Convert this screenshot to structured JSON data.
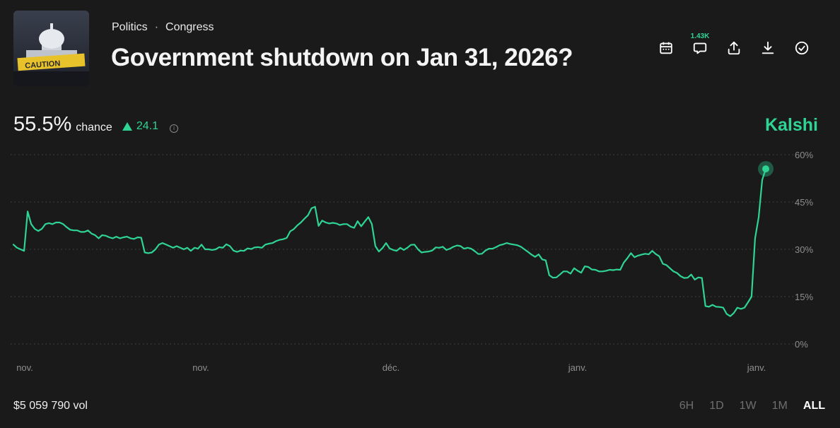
{
  "market": {
    "breadcrumb": [
      "Politics",
      "Congress"
    ],
    "separator": "·",
    "title": "Government shutdown on Jan 31, 2026?",
    "thumbnail_text": "CAUTION"
  },
  "actions": [
    {
      "name": "calendar-icon"
    },
    {
      "name": "comment-icon",
      "count": "1.43K"
    },
    {
      "name": "share-icon"
    },
    {
      "name": "download-icon"
    },
    {
      "name": "check-circle-icon"
    }
  ],
  "stats": {
    "chance_value": "55.5%",
    "chance_label": "chance",
    "delta": "24.1",
    "source": "Kalshi",
    "volume": "$5 059 790 vol"
  },
  "ranges": [
    {
      "label": "6H",
      "active": false
    },
    {
      "label": "1D",
      "active": false
    },
    {
      "label": "1W",
      "active": false
    },
    {
      "label": "1M",
      "active": false
    },
    {
      "label": "ALL",
      "active": true
    }
  ],
  "colors": {
    "accent": "#2fd495",
    "background": "#1a1a1a",
    "grid": "#4a4a4a"
  },
  "chart_data": {
    "type": "line",
    "ylim": [
      0,
      60
    ],
    "y_ticks": [
      0,
      15,
      30,
      45,
      60
    ],
    "y_tick_labels": [
      "0%",
      "15%",
      "30%",
      "45%",
      "60%"
    ],
    "x_tick_labels": [
      "nov.",
      "nov.",
      "déc.",
      "janv.",
      "janv."
    ],
    "grid": true,
    "series": [
      {
        "values": [
          31.5,
          30.5,
          30,
          29.5,
          42,
          38,
          36.5,
          35.8,
          36.5,
          38,
          38.3,
          38,
          38.5,
          38.5,
          38,
          37,
          36.2,
          36,
          36,
          35.5,
          35.5,
          36,
          35,
          34.5,
          33.5,
          34.5,
          34.3,
          33.8,
          33.5,
          34,
          33.5,
          33.8,
          34,
          33.5,
          33.3,
          33.8,
          33.7,
          29,
          28.8,
          29,
          30,
          31.5,
          32,
          31.5,
          31,
          30.5,
          31,
          30.5,
          30,
          30.5,
          29.5,
          30.5,
          30.2,
          31.5,
          30,
          30,
          29.8,
          30,
          30.7,
          30.5,
          31.6,
          31,
          29.6,
          29.2,
          29.6,
          29.5,
          30.3,
          30.1,
          30.6,
          30.7,
          30.5,
          31.5,
          31.8,
          32,
          32.6,
          33,
          33.2,
          33.6,
          35.7,
          36.4,
          37.6,
          38.5,
          39.7,
          40.8,
          43,
          43.5,
          37.4,
          39.1,
          38.5,
          38.2,
          38.4,
          38.2,
          37.7,
          38,
          38,
          37.2,
          36.8,
          38.9,
          37.3,
          38.8,
          40.2,
          38,
          31,
          29.3,
          30.4,
          32,
          30.3,
          29.8,
          29.5,
          30.5,
          29.8,
          30.5,
          31.4,
          31.5,
          30,
          29,
          29.2,
          29.3,
          29.6,
          30.6,
          30.5,
          30.8,
          29.8,
          30.2,
          30.8,
          31.2,
          31,
          30.2,
          30.5,
          30.2,
          29.4,
          28.5,
          28.6,
          29.6,
          30.2,
          30.2,
          30.7,
          31.3,
          31.6,
          32,
          31.7,
          31.5,
          31.3,
          30.8,
          30,
          29.2,
          28.3,
          27.6,
          28.4,
          26.8,
          26.5,
          21.8,
          21,
          21.1,
          22,
          23,
          23,
          22.3,
          24,
          23.2,
          22.6,
          24.6,
          24.4,
          23.6,
          23.5,
          23,
          23,
          23.2,
          23.5,
          23.4,
          23.6,
          23.5,
          25.8,
          27.2,
          28.8,
          27.5,
          28,
          28.3,
          28.6,
          28.4,
          29.5,
          28.5,
          27.8,
          25.4,
          25,
          24,
          23,
          22.5,
          21.5,
          20.9,
          21,
          22,
          20.4,
          21.1,
          20.9,
          12,
          11.8,
          12.4,
          11.8,
          11.7,
          11.5,
          9.5,
          8.8,
          9.8,
          11.5,
          11.1,
          11.5,
          13.2,
          15,
          33.5,
          40.2,
          52,
          55.5
        ]
      }
    ],
    "last_value": 55.5
  }
}
